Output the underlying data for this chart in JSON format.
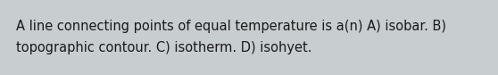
{
  "text_line1": "A line connecting points of equal temperature is a(n) A) isobar. B)",
  "text_line2": "topographic contour. C) isotherm. D) isohyet.",
  "background_color": "#c8cdd0",
  "text_color": "#1a1a1a",
  "font_size": 10.5,
  "fig_width": 5.58,
  "fig_height": 0.84,
  "dpi": 100
}
